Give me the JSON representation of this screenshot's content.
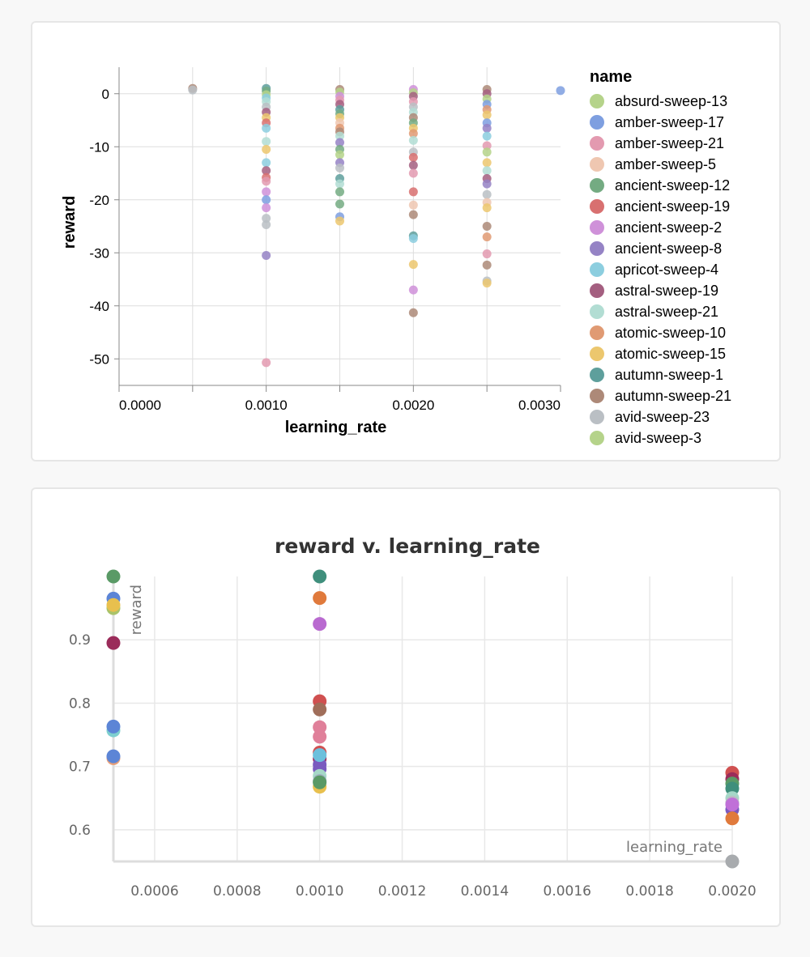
{
  "chart_data": [
    {
      "type": "scatter",
      "xlabel": "learning_rate",
      "ylabel": "reward",
      "xlim": [
        0,
        0.003
      ],
      "ylim": [
        -55,
        5
      ],
      "x_ticks": [
        0.0,
        0.001,
        0.002,
        0.003
      ],
      "x_tick_labels": [
        "0.0000",
        "0.0010",
        "0.0020",
        "0.0030"
      ],
      "y_ticks": [
        0,
        -10,
        -20,
        -30,
        -40,
        -50
      ],
      "y_tick_labels": [
        "0",
        "-10",
        "-20",
        "-30",
        "-40",
        "-50"
      ],
      "grid": true,
      "legend_title": "name",
      "legend_position": "right",
      "legend": [
        {
          "name": "absurd-sweep-13",
          "color": "#b5d38a"
        },
        {
          "name": "amber-sweep-17",
          "color": "#7e9fe0"
        },
        {
          "name": "amber-sweep-21",
          "color": "#e39ab0"
        },
        {
          "name": "amber-sweep-5",
          "color": "#efc7b1"
        },
        {
          "name": "ancient-sweep-12",
          "color": "#74ab82"
        },
        {
          "name": "ancient-sweep-19",
          "color": "#d87070"
        },
        {
          "name": "ancient-sweep-2",
          "color": "#cf91d9"
        },
        {
          "name": "ancient-sweep-8",
          "color": "#9583c5"
        },
        {
          "name": "apricot-sweep-4",
          "color": "#8ccedf"
        },
        {
          "name": "astral-sweep-19",
          "color": "#a45f80"
        },
        {
          "name": "astral-sweep-21",
          "color": "#b2ddd3"
        },
        {
          "name": "atomic-sweep-10",
          "color": "#e09a73"
        },
        {
          "name": "atomic-sweep-15",
          "color": "#ecc76e"
        },
        {
          "name": "autumn-sweep-1",
          "color": "#5e9f9c"
        },
        {
          "name": "autumn-sweep-21",
          "color": "#ad8978"
        },
        {
          "name": "avid-sweep-23",
          "color": "#babfc4"
        },
        {
          "name": "avid-sweep-3",
          "color": "#b5d38a"
        }
      ],
      "points": [
        {
          "x": 0.0005,
          "y": 1.0,
          "c": "#ad8978"
        },
        {
          "x": 0.0005,
          "y": 0.7,
          "c": "#babfc4"
        },
        {
          "x": 0.003,
          "y": 0.6,
          "c": "#7e9fe0"
        },
        {
          "x": 0.001,
          "y": 1.0,
          "c": "#5e9f9c"
        },
        {
          "x": 0.001,
          "y": 0.5,
          "c": "#74ab82"
        },
        {
          "x": 0.001,
          "y": -0.2,
          "c": "#b5d38a"
        },
        {
          "x": 0.001,
          "y": -0.8,
          "c": "#8ccedf"
        },
        {
          "x": 0.001,
          "y": -1.5,
          "c": "#b2ddd3"
        },
        {
          "x": 0.001,
          "y": -2.5,
          "c": "#babfc4"
        },
        {
          "x": 0.001,
          "y": -3.5,
          "c": "#a45f80"
        },
        {
          "x": 0.001,
          "y": -4.5,
          "c": "#ecc76e"
        },
        {
          "x": 0.001,
          "y": -5.5,
          "c": "#d87070"
        },
        {
          "x": 0.001,
          "y": -6.5,
          "c": "#8ccedf"
        },
        {
          "x": 0.001,
          "y": -9.0,
          "c": "#b2ddd3"
        },
        {
          "x": 0.001,
          "y": -10.5,
          "c": "#ecc76e"
        },
        {
          "x": 0.001,
          "y": -13.0,
          "c": "#8ccedf"
        },
        {
          "x": 0.001,
          "y": -14.5,
          "c": "#a45f80"
        },
        {
          "x": 0.001,
          "y": -15.8,
          "c": "#d87070"
        },
        {
          "x": 0.001,
          "y": -16.5,
          "c": "#e39ab0"
        },
        {
          "x": 0.001,
          "y": -18.5,
          "c": "#cf91d9"
        },
        {
          "x": 0.001,
          "y": -20.0,
          "c": "#7e9fe0"
        },
        {
          "x": 0.001,
          "y": -21.5,
          "c": "#cf91d9"
        },
        {
          "x": 0.001,
          "y": -23.5,
          "c": "#babfc4"
        },
        {
          "x": 0.001,
          "y": -24.7,
          "c": "#babfc4"
        },
        {
          "x": 0.001,
          "y": -30.5,
          "c": "#9583c5"
        },
        {
          "x": 0.001,
          "y": -50.7,
          "c": "#e39ab0"
        },
        {
          "x": 0.0015,
          "y": 0.8,
          "c": "#ad8978"
        },
        {
          "x": 0.0015,
          "y": 0.3,
          "c": "#b5d38a"
        },
        {
          "x": 0.0015,
          "y": -0.5,
          "c": "#cf91d9"
        },
        {
          "x": 0.0015,
          "y": -1.2,
          "c": "#e39ab0"
        },
        {
          "x": 0.0015,
          "y": -2.0,
          "c": "#a45f80"
        },
        {
          "x": 0.0015,
          "y": -3.0,
          "c": "#5e9f9c"
        },
        {
          "x": 0.0015,
          "y": -3.8,
          "c": "#74ab82"
        },
        {
          "x": 0.0015,
          "y": -4.5,
          "c": "#ecc76e"
        },
        {
          "x": 0.0015,
          "y": -5.5,
          "c": "#efc7b1"
        },
        {
          "x": 0.0015,
          "y": -6.5,
          "c": "#e09a73"
        },
        {
          "x": 0.0015,
          "y": -7.2,
          "c": "#ad8978"
        },
        {
          "x": 0.0015,
          "y": -8.0,
          "c": "#b2ddd3"
        },
        {
          "x": 0.0015,
          "y": -9.2,
          "c": "#9583c5"
        },
        {
          "x": 0.0015,
          "y": -10.5,
          "c": "#74ab82"
        },
        {
          "x": 0.0015,
          "y": -11.5,
          "c": "#b5d38a"
        },
        {
          "x": 0.0015,
          "y": -13.0,
          "c": "#9583c5"
        },
        {
          "x": 0.0015,
          "y": -14.0,
          "c": "#babfc4"
        },
        {
          "x": 0.0015,
          "y": -16.0,
          "c": "#5e9f9c"
        },
        {
          "x": 0.0015,
          "y": -17.0,
          "c": "#b2ddd3"
        },
        {
          "x": 0.0015,
          "y": -18.5,
          "c": "#74ab82"
        },
        {
          "x": 0.0015,
          "y": -20.8,
          "c": "#74ab82"
        },
        {
          "x": 0.0015,
          "y": -23.2,
          "c": "#7e9fe0"
        },
        {
          "x": 0.0015,
          "y": -24.0,
          "c": "#ecc76e"
        },
        {
          "x": 0.002,
          "y": 0.8,
          "c": "#cf91d9"
        },
        {
          "x": 0.002,
          "y": 0.2,
          "c": "#b5d38a"
        },
        {
          "x": 0.002,
          "y": -0.5,
          "c": "#a45f80"
        },
        {
          "x": 0.002,
          "y": -1.5,
          "c": "#e39ab0"
        },
        {
          "x": 0.002,
          "y": -2.5,
          "c": "#babfc4"
        },
        {
          "x": 0.002,
          "y": -3.5,
          "c": "#b2ddd3"
        },
        {
          "x": 0.002,
          "y": -4.5,
          "c": "#ad8978"
        },
        {
          "x": 0.002,
          "y": -5.5,
          "c": "#74ab82"
        },
        {
          "x": 0.002,
          "y": -6.5,
          "c": "#ecc76e"
        },
        {
          "x": 0.002,
          "y": -7.5,
          "c": "#e09a73"
        },
        {
          "x": 0.002,
          "y": -8.8,
          "c": "#b2ddd3"
        },
        {
          "x": 0.002,
          "y": -11.0,
          "c": "#babfc4"
        },
        {
          "x": 0.002,
          "y": -12.0,
          "c": "#d87070"
        },
        {
          "x": 0.002,
          "y": -13.5,
          "c": "#a45f80"
        },
        {
          "x": 0.002,
          "y": -15.0,
          "c": "#e39ab0"
        },
        {
          "x": 0.002,
          "y": -18.5,
          "c": "#d87070"
        },
        {
          "x": 0.002,
          "y": -21.0,
          "c": "#efc7b1"
        },
        {
          "x": 0.002,
          "y": -22.8,
          "c": "#ad8978"
        },
        {
          "x": 0.002,
          "y": -26.8,
          "c": "#5e9f9c"
        },
        {
          "x": 0.002,
          "y": -27.3,
          "c": "#8ccedf"
        },
        {
          "x": 0.002,
          "y": -32.2,
          "c": "#ecc76e"
        },
        {
          "x": 0.002,
          "y": -37.0,
          "c": "#cf91d9"
        },
        {
          "x": 0.002,
          "y": -41.3,
          "c": "#ad8978"
        },
        {
          "x": 0.0025,
          "y": 0.8,
          "c": "#ad8978"
        },
        {
          "x": 0.0025,
          "y": 0.0,
          "c": "#a45f80"
        },
        {
          "x": 0.0025,
          "y": -1.0,
          "c": "#b5d38a"
        },
        {
          "x": 0.0025,
          "y": -2.0,
          "c": "#7e9fe0"
        },
        {
          "x": 0.0025,
          "y": -3.0,
          "c": "#e09a73"
        },
        {
          "x": 0.0025,
          "y": -4.0,
          "c": "#ecc76e"
        },
        {
          "x": 0.0025,
          "y": -5.5,
          "c": "#7e9fe0"
        },
        {
          "x": 0.0025,
          "y": -6.5,
          "c": "#9583c5"
        },
        {
          "x": 0.0025,
          "y": -8.0,
          "c": "#8ccedf"
        },
        {
          "x": 0.0025,
          "y": -9.8,
          "c": "#e39ab0"
        },
        {
          "x": 0.0025,
          "y": -11.0,
          "c": "#b5d38a"
        },
        {
          "x": 0.0025,
          "y": -13.0,
          "c": "#ecc76e"
        },
        {
          "x": 0.0025,
          "y": -14.5,
          "c": "#b2ddd3"
        },
        {
          "x": 0.0025,
          "y": -16.0,
          "c": "#a45f80"
        },
        {
          "x": 0.0025,
          "y": -17.0,
          "c": "#9583c5"
        },
        {
          "x": 0.0025,
          "y": -19.0,
          "c": "#babfc4"
        },
        {
          "x": 0.0025,
          "y": -20.5,
          "c": "#efc7b1"
        },
        {
          "x": 0.0025,
          "y": -21.5,
          "c": "#ecc76e"
        },
        {
          "x": 0.0025,
          "y": -25.0,
          "c": "#ad8978"
        },
        {
          "x": 0.0025,
          "y": -27.0,
          "c": "#e09a73"
        },
        {
          "x": 0.0025,
          "y": -30.2,
          "c": "#e39ab0"
        },
        {
          "x": 0.0025,
          "y": -32.3,
          "c": "#ad8978"
        },
        {
          "x": 0.0025,
          "y": -35.3,
          "c": "#babfc4"
        },
        {
          "x": 0.0025,
          "y": -35.7,
          "c": "#ecc76e"
        }
      ]
    },
    {
      "type": "scatter",
      "title": "reward v. learning_rate",
      "xlabel": "learning_rate",
      "ylabel": "reward",
      "xlim": [
        0.0005,
        0.002
      ],
      "ylim": [
        0.55,
        1.0
      ],
      "x_ticks": [
        0.0006,
        0.0008,
        0.001,
        0.0012,
        0.0014,
        0.0016,
        0.0018,
        0.002
      ],
      "x_tick_labels": [
        "0.0006",
        "0.0008",
        "0.0010",
        "0.0012",
        "0.0014",
        "0.0016",
        "0.0018",
        "0.0020"
      ],
      "y_ticks": [
        0.6,
        0.7,
        0.8,
        0.9
      ],
      "y_tick_labels": [
        "0.6",
        "0.7",
        "0.8",
        "0.9"
      ],
      "grid": true,
      "points": [
        {
          "x": 0.0005,
          "y": 1.0,
          "c": "#5a9a66"
        },
        {
          "x": 0.0005,
          "y": 0.965,
          "c": "#5c85d6"
        },
        {
          "x": 0.0005,
          "y": 0.95,
          "c": "#a9c36a"
        },
        {
          "x": 0.0005,
          "y": 0.955,
          "c": "#e8c04e"
        },
        {
          "x": 0.0005,
          "y": 0.895,
          "c": "#9b2c5a"
        },
        {
          "x": 0.0005,
          "y": 0.757,
          "c": "#7ecfcf"
        },
        {
          "x": 0.0005,
          "y": 0.763,
          "c": "#5c85d6"
        },
        {
          "x": 0.0005,
          "y": 0.713,
          "c": "#e8a07a"
        },
        {
          "x": 0.0005,
          "y": 0.716,
          "c": "#5c85d6"
        },
        {
          "x": 0.001,
          "y": 1.0,
          "c": "#3f8f7c"
        },
        {
          "x": 0.001,
          "y": 0.966,
          "c": "#e07a3c"
        },
        {
          "x": 0.001,
          "y": 0.925,
          "c": "#b96ad0"
        },
        {
          "x": 0.001,
          "y": 0.803,
          "c": "#d05050"
        },
        {
          "x": 0.001,
          "y": 0.79,
          "c": "#a06e5a"
        },
        {
          "x": 0.001,
          "y": 0.762,
          "c": "#e0809a"
        },
        {
          "x": 0.001,
          "y": 0.747,
          "c": "#e0809a"
        },
        {
          "x": 0.001,
          "y": 0.722,
          "c": "#d05050"
        },
        {
          "x": 0.001,
          "y": 0.712,
          "c": "#9b2c5a"
        },
        {
          "x": 0.001,
          "y": 0.703,
          "c": "#7a5abf"
        },
        {
          "x": 0.001,
          "y": 0.696,
          "c": "#7a5abf"
        },
        {
          "x": 0.001,
          "y": 0.718,
          "c": "#6cc0dc"
        },
        {
          "x": 0.001,
          "y": 0.685,
          "c": "#a6d8c8"
        },
        {
          "x": 0.001,
          "y": 0.677,
          "c": "#9fb0c0"
        },
        {
          "x": 0.001,
          "y": 0.668,
          "c": "#e8c04e"
        },
        {
          "x": 0.001,
          "y": 0.675,
          "c": "#5a9a66"
        },
        {
          "x": 0.002,
          "y": 0.69,
          "c": "#d05050"
        },
        {
          "x": 0.002,
          "y": 0.68,
          "c": "#9b2c5a"
        },
        {
          "x": 0.002,
          "y": 0.673,
          "c": "#5a9a66"
        },
        {
          "x": 0.002,
          "y": 0.665,
          "c": "#3f8f7c"
        },
        {
          "x": 0.002,
          "y": 0.65,
          "c": "#a6d8c8"
        },
        {
          "x": 0.002,
          "y": 0.643,
          "c": "#babfc4"
        },
        {
          "x": 0.002,
          "y": 0.632,
          "c": "#7a5abf"
        },
        {
          "x": 0.002,
          "y": 0.64,
          "c": "#c070d8"
        },
        {
          "x": 0.002,
          "y": 0.618,
          "c": "#e07a3c"
        },
        {
          "x": 0.002,
          "y": 0.55,
          "c": "#a8abae"
        }
      ]
    }
  ]
}
